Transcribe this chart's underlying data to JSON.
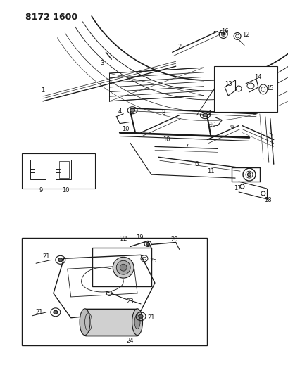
{
  "title": "8172 1600",
  "bg_color": "#ffffff",
  "line_color": "#1a1a1a",
  "fig_width": 4.1,
  "fig_height": 5.33,
  "dpi": 100
}
